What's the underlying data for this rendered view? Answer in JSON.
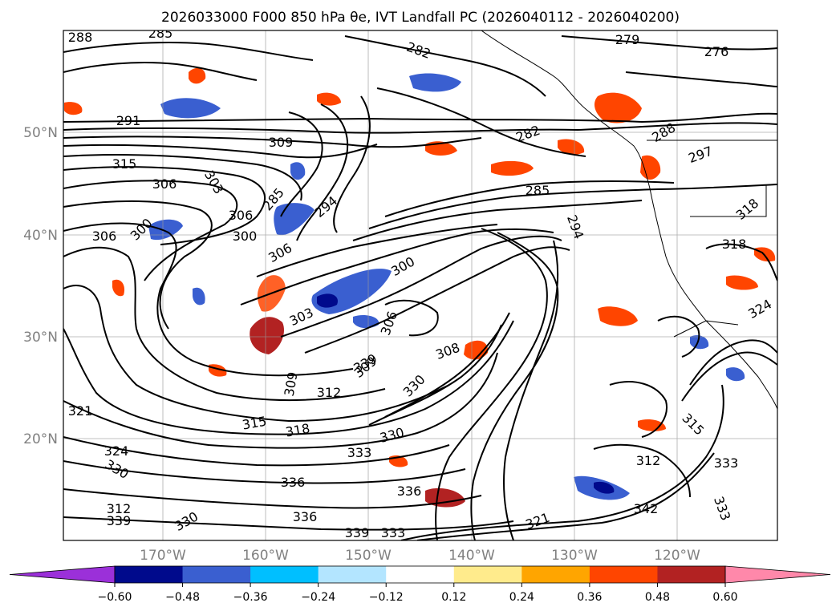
{
  "title": "2026033000 F000 850 hPa θe, IVT Landfall PC (2026040112 - 2026040200)",
  "lat_labels": [
    "50°N",
    "40°N",
    "30°N",
    "20°N"
  ],
  "lon_labels": [
    "170°W",
    "160°W",
    "150°W",
    "140°W",
    "130°W",
    "120°W"
  ],
  "contour_labels": [
    "288",
    "285",
    "282",
    "279",
    "276",
    "291",
    "309",
    "315",
    "306",
    "303",
    "306",
    "300",
    "306",
    "300",
    "294",
    "285",
    "282",
    "288",
    "297",
    "285",
    "318",
    "318",
    "324",
    "300",
    "306",
    "303",
    "306",
    "309",
    "312",
    "312",
    "308",
    "309",
    "315",
    "318",
    "330",
    "333",
    "336",
    "330",
    "336",
    "324",
    "321",
    "330",
    "339",
    "339",
    "333",
    "336",
    "312",
    "315",
    "333",
    "342",
    "330",
    "333",
    "339",
    "321",
    "294"
  ],
  "colorbar": {
    "tick_labels": [
      "−0.60",
      "−0.48",
      "−0.36",
      "−0.24",
      "−0.12",
      "0.12",
      "0.24",
      "0.36",
      "0.48",
      "0.60"
    ],
    "colors": [
      "#9b30d9",
      "#000a8c",
      "#3a5fd0",
      "#00bfff",
      "#b3e5ff",
      "#ffffff",
      "#ffeb8c",
      "#ffa500",
      "#ff4500",
      "#b22222",
      "#ff88aa"
    ]
  }
}
